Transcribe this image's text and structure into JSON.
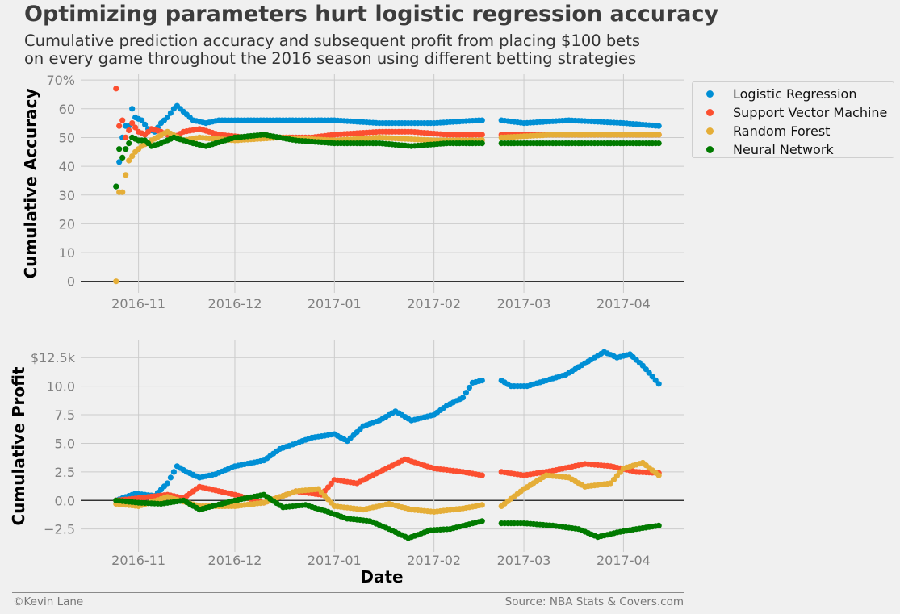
{
  "title": "Optimizing parameters hurt logistic regression accuracy",
  "subtitle_lines": [
    "Cumulative prediction accuracy and subsequent profit from placing $100 bets",
    "on every game throughout the 2016 season using different betting strategies"
  ],
  "footer": {
    "credit": "©Kevin Lane",
    "source": "Source: NBA Stats & Covers.com"
  },
  "colors": {
    "Logistic Regression": "#008fd5",
    "Support Vector Machine": "#fc4f30",
    "Random Forest": "#e5ae38",
    "Neural Network": "#017a00"
  },
  "legend_entries": [
    "Logistic Regression",
    "Support Vector Machine",
    "Random Forest",
    "Neural Network"
  ],
  "chart_data": [
    {
      "type": "scatter",
      "panel": "accuracy",
      "ylabel": "Cumulative Accuracy",
      "xlabel": "",
      "ylim": [
        -4,
        72
      ],
      "yticks": [
        0,
        10,
        20,
        30,
        40,
        50,
        60,
        70
      ],
      "ytick_labels": [
        "0",
        "10",
        "20",
        "30",
        "40",
        "50",
        "60",
        "70%"
      ],
      "xlim": [
        "2016-10-14",
        "2017-04-20"
      ],
      "xticks": [
        "2016-11-01",
        "2016-12-01",
        "2017-01-01",
        "2017-02-01",
        "2017-03-01",
        "2017-04-01"
      ],
      "xtick_labels": [
        "2016-11",
        "2016-12",
        "2017-01",
        "2017-02",
        "2017-03",
        "2017-04"
      ],
      "grid": true,
      "legend_placement": "outside right",
      "date_range": [
        "2016-10-25",
        "2017-04-12"
      ],
      "gap": [
        "2017-02-16",
        "2017-02-22"
      ],
      "series": [
        {
          "name": "Logistic Regression",
          "values": [
            [
              "2016-10-25",
              33
            ],
            [
              "2016-10-27",
              50
            ],
            [
              "2016-10-28",
              54
            ],
            [
              "2016-10-29",
              54
            ],
            [
              "2016-10-30",
              60
            ],
            [
              "2016-10-31",
              57
            ],
            [
              "2016-11-02",
              56
            ],
            [
              "2016-11-04",
              53
            ],
            [
              "2016-11-06",
              52
            ],
            [
              "2016-11-08",
              55
            ],
            [
              "2016-11-10",
              57
            ],
            [
              "2016-11-12",
              60
            ],
            [
              "2016-11-13",
              61
            ],
            [
              "2016-11-15",
              59
            ],
            [
              "2016-11-18",
              56
            ],
            [
              "2016-11-22",
              55
            ],
            [
              "2016-11-26",
              56
            ],
            [
              "2016-12-01",
              56
            ],
            [
              "2016-12-15",
              56
            ],
            [
              "2016-12-25",
              56
            ],
            [
              "2017-01-01",
              56
            ],
            [
              "2017-01-15",
              55
            ],
            [
              "2017-02-01",
              55
            ],
            [
              "2017-02-15",
              56
            ],
            [
              "2017-02-22",
              56
            ],
            [
              "2017-03-01",
              55
            ],
            [
              "2017-03-15",
              56
            ],
            [
              "2017-04-01",
              55
            ],
            [
              "2017-04-12",
              54
            ]
          ]
        },
        {
          "name": "Support Vector Machine",
          "values": [
            [
              "2016-10-25",
              67
            ],
            [
              "2016-10-26",
              54
            ],
            [
              "2016-10-27",
              56
            ],
            [
              "2016-10-28",
              50
            ],
            [
              "2016-10-30",
              55
            ],
            [
              "2016-11-01",
              52
            ],
            [
              "2016-11-03",
              51
            ],
            [
              "2016-11-05",
              53
            ],
            [
              "2016-11-08",
              52
            ],
            [
              "2016-11-12",
              50
            ],
            [
              "2016-11-15",
              52
            ],
            [
              "2016-11-20",
              53
            ],
            [
              "2016-11-26",
              51
            ],
            [
              "2016-12-05",
              50
            ],
            [
              "2016-12-15",
              50
            ],
            [
              "2016-12-25",
              50
            ],
            [
              "2017-01-01",
              51
            ],
            [
              "2017-01-15",
              52
            ],
            [
              "2017-01-25",
              52
            ],
            [
              "2017-02-05",
              51
            ],
            [
              "2017-02-15",
              51
            ],
            [
              "2017-02-22",
              51
            ],
            [
              "2017-03-10",
              51
            ],
            [
              "2017-03-25",
              51
            ],
            [
              "2017-04-12",
              51
            ]
          ]
        },
        {
          "name": "Random Forest",
          "values": [
            [
              "2016-10-25",
              0
            ],
            [
              "2016-10-26",
              31
            ],
            [
              "2016-10-27",
              31
            ],
            [
              "2016-10-28",
              37
            ],
            [
              "2016-10-29",
              42
            ],
            [
              "2016-10-31",
              45
            ],
            [
              "2016-11-02",
              47
            ],
            [
              "2016-11-05",
              49
            ],
            [
              "2016-11-10",
              52
            ],
            [
              "2016-11-15",
              49
            ],
            [
              "2016-11-20",
              50
            ],
            [
              "2016-12-01",
              49
            ],
            [
              "2016-12-15",
              50
            ],
            [
              "2017-01-01",
              49
            ],
            [
              "2017-01-15",
              50
            ],
            [
              "2017-02-01",
              49
            ],
            [
              "2017-02-15",
              49
            ],
            [
              "2017-02-22",
              50
            ],
            [
              "2017-03-10",
              51
            ],
            [
              "2017-03-25",
              51
            ],
            [
              "2017-04-12",
              51
            ]
          ]
        },
        {
          "name": "Neural Network",
          "values": [
            [
              "2016-10-25",
              33
            ],
            [
              "2016-10-26",
              46
            ],
            [
              "2016-10-27",
              43
            ],
            [
              "2016-10-28",
              46
            ],
            [
              "2016-10-30",
              50
            ],
            [
              "2016-11-01",
              49
            ],
            [
              "2016-11-03",
              49
            ],
            [
              "2016-11-05",
              47
            ],
            [
              "2016-11-08",
              48
            ],
            [
              "2016-11-12",
              50
            ],
            [
              "2016-11-18",
              48
            ],
            [
              "2016-11-22",
              47
            ],
            [
              "2016-12-01",
              50
            ],
            [
              "2016-12-10",
              51
            ],
            [
              "2016-12-20",
              49
            ],
            [
              "2017-01-01",
              48
            ],
            [
              "2017-01-15",
              48
            ],
            [
              "2017-01-25",
              47
            ],
            [
              "2017-02-05",
              48
            ],
            [
              "2017-02-15",
              48
            ],
            [
              "2017-02-22",
              48
            ],
            [
              "2017-03-10",
              48
            ],
            [
              "2017-03-25",
              48
            ],
            [
              "2017-04-12",
              48
            ]
          ]
        }
      ]
    },
    {
      "type": "scatter",
      "panel": "profit",
      "ylabel": "Cumulative Profit",
      "xlabel": "Date",
      "ylim": [
        -4.5,
        14
      ],
      "yticks": [
        -2.5,
        0,
        2.5,
        5,
        7.5,
        10,
        12.5
      ],
      "ytick_labels": [
        "−2.5",
        "0.0",
        "2.5",
        "5.0",
        "7.5",
        "10.0",
        "$12.5k"
      ],
      "xlim": [
        "2016-10-14",
        "2017-04-20"
      ],
      "xticks": [
        "2016-11-01",
        "2016-12-01",
        "2017-01-01",
        "2017-02-01",
        "2017-03-01",
        "2017-04-01"
      ],
      "xtick_labels": [
        "2016-11",
        "2016-12",
        "2017-01",
        "2017-02",
        "2017-03",
        "2017-04"
      ],
      "grid": true,
      "date_range": [
        "2016-10-25",
        "2017-04-12"
      ],
      "gap": [
        "2017-02-16",
        "2017-02-22"
      ],
      "series": [
        {
          "name": "Logistic Regression",
          "values": [
            [
              "2016-10-25",
              0
            ],
            [
              "2016-10-31",
              0.6
            ],
            [
              "2016-11-06",
              0.4
            ],
            [
              "2016-11-10",
              1.5
            ],
            [
              "2016-11-13",
              3.0
            ],
            [
              "2016-11-16",
              2.5
            ],
            [
              "2016-11-20",
              2.0
            ],
            [
              "2016-11-25",
              2.3
            ],
            [
              "2016-12-01",
              3.0
            ],
            [
              "2016-12-10",
              3.5
            ],
            [
              "2016-12-15",
              4.5
            ],
            [
              "2016-12-20",
              5.0
            ],
            [
              "2016-12-25",
              5.5
            ],
            [
              "2017-01-01",
              5.8
            ],
            [
              "2017-01-05",
              5.2
            ],
            [
              "2017-01-10",
              6.5
            ],
            [
              "2017-01-15",
              7.0
            ],
            [
              "2017-01-20",
              7.8
            ],
            [
              "2017-01-25",
              7.0
            ],
            [
              "2017-02-01",
              7.5
            ],
            [
              "2017-02-05",
              8.3
            ],
            [
              "2017-02-10",
              9.0
            ],
            [
              "2017-02-13",
              10.3
            ],
            [
              "2017-02-16",
              10.5
            ],
            [
              "2017-02-22",
              10.5
            ],
            [
              "2017-02-25",
              10.0
            ],
            [
              "2017-03-02",
              10.0
            ],
            [
              "2017-03-08",
              10.5
            ],
            [
              "2017-03-14",
              11.0
            ],
            [
              "2017-03-20",
              12.0
            ],
            [
              "2017-03-26",
              13.0
            ],
            [
              "2017-03-30",
              12.5
            ],
            [
              "2017-04-03",
              12.8
            ],
            [
              "2017-04-07",
              11.8
            ],
            [
              "2017-04-12",
              10.2
            ]
          ]
        },
        {
          "name": "Support Vector Machine",
          "values": [
            [
              "2016-10-25",
              0
            ],
            [
              "2016-11-01",
              0.2
            ],
            [
              "2016-11-10",
              0.5
            ],
            [
              "2016-11-15",
              0.2
            ],
            [
              "2016-11-20",
              1.2
            ],
            [
              "2016-12-01",
              0.5
            ],
            [
              "2016-12-10",
              -0.2
            ],
            [
              "2016-12-20",
              0.8
            ],
            [
              "2016-12-28",
              0.5
            ],
            [
              "2017-01-01",
              1.8
            ],
            [
              "2017-01-08",
              1.5
            ],
            [
              "2017-01-15",
              2.5
            ],
            [
              "2017-01-23",
              3.6
            ],
            [
              "2017-02-01",
              2.8
            ],
            [
              "2017-02-10",
              2.5
            ],
            [
              "2017-02-16",
              2.2
            ],
            [
              "2017-02-22",
              2.5
            ],
            [
              "2017-03-01",
              2.2
            ],
            [
              "2017-03-10",
              2.6
            ],
            [
              "2017-03-20",
              3.2
            ],
            [
              "2017-03-28",
              3.0
            ],
            [
              "2017-04-05",
              2.5
            ],
            [
              "2017-04-12",
              2.4
            ]
          ]
        },
        {
          "name": "Random Forest",
          "values": [
            [
              "2016-10-25",
              -0.3
            ],
            [
              "2016-11-01",
              -0.5
            ],
            [
              "2016-11-10",
              0.3
            ],
            [
              "2016-11-20",
              -0.5
            ],
            [
              "2016-12-01",
              -0.5
            ],
            [
              "2016-12-10",
              -0.2
            ],
            [
              "2016-12-20",
              0.8
            ],
            [
              "2016-12-27",
              1.0
            ],
            [
              "2017-01-01",
              -0.5
            ],
            [
              "2017-01-10",
              -0.8
            ],
            [
              "2017-01-18",
              -0.3
            ],
            [
              "2017-01-25",
              -0.8
            ],
            [
              "2017-02-01",
              -1.0
            ],
            [
              "2017-02-10",
              -0.7
            ],
            [
              "2017-02-16",
              -0.4
            ],
            [
              "2017-02-22",
              -0.5
            ],
            [
              "2017-03-01",
              1.0
            ],
            [
              "2017-03-08",
              2.2
            ],
            [
              "2017-03-15",
              2.0
            ],
            [
              "2017-03-20",
              1.2
            ],
            [
              "2017-03-28",
              1.5
            ],
            [
              "2017-04-01",
              2.8
            ],
            [
              "2017-04-07",
              3.3
            ],
            [
              "2017-04-12",
              2.2
            ]
          ]
        },
        {
          "name": "Neural Network",
          "values": [
            [
              "2016-10-25",
              0
            ],
            [
              "2016-11-01",
              -0.2
            ],
            [
              "2016-11-08",
              -0.3
            ],
            [
              "2016-11-15",
              0.0
            ],
            [
              "2016-11-20",
              -0.8
            ],
            [
              "2016-12-01",
              0.0
            ],
            [
              "2016-12-10",
              0.5
            ],
            [
              "2016-12-16",
              -0.6
            ],
            [
              "2016-12-23",
              -0.4
            ],
            [
              "2016-12-30",
              -1.0
            ],
            [
              "2017-01-05",
              -1.6
            ],
            [
              "2017-01-12",
              -1.8
            ],
            [
              "2017-01-18",
              -2.5
            ],
            [
              "2017-01-24",
              -3.3
            ],
            [
              "2017-01-31",
              -2.6
            ],
            [
              "2017-02-06",
              -2.5
            ],
            [
              "2017-02-16",
              -1.8
            ],
            [
              "2017-02-22",
              -2.0
            ],
            [
              "2017-03-01",
              -2.0
            ],
            [
              "2017-03-10",
              -2.2
            ],
            [
              "2017-03-18",
              -2.5
            ],
            [
              "2017-03-24",
              -3.2
            ],
            [
              "2017-03-30",
              -2.8
            ],
            [
              "2017-04-05",
              -2.5
            ],
            [
              "2017-04-12",
              -2.2
            ]
          ]
        }
      ]
    }
  ]
}
